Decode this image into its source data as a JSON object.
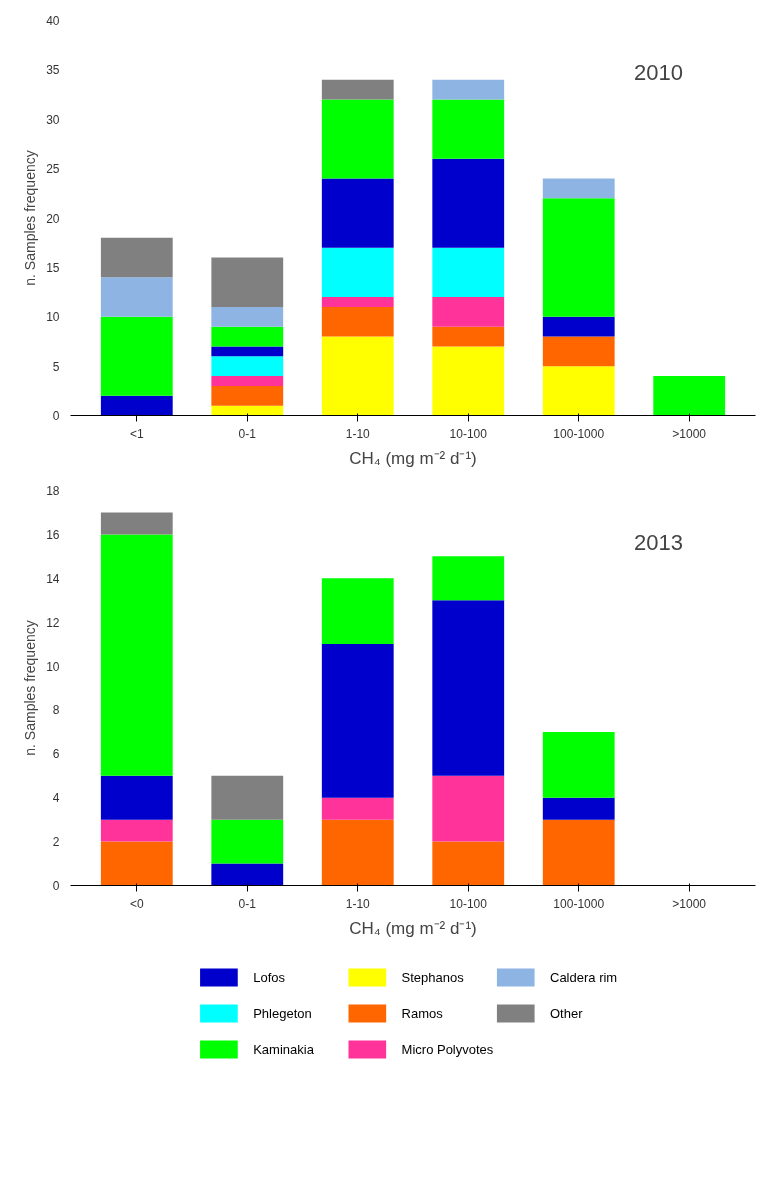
{
  "chart_data": [
    {
      "type": "bar",
      "stacked": true,
      "annotations": [
        "2010"
      ],
      "xlabel": "CH₄ (mg m⁻² d⁻¹)",
      "ylabel": "n. Samples frequency",
      "categories": [
        "<1",
        "0-1",
        "1-10",
        "10-100",
        "100-1000",
        ">1000"
      ],
      "ylim": [
        0,
        40
      ],
      "yticks": [
        0,
        5,
        10,
        15,
        20,
        25,
        30,
        35,
        40
      ],
      "grid": false,
      "legend": "bottom",
      "series": [
        {
          "name": "Stephanos",
          "color": "#ffff00",
          "values": [
            0,
            1,
            8,
            7,
            5,
            0
          ]
        },
        {
          "name": "Ramos",
          "color": "#ff6600",
          "values": [
            0,
            2,
            3,
            2,
            3,
            0
          ]
        },
        {
          "name": "Micro Polyvotes",
          "color": "#ff3399",
          "values": [
            0,
            1,
            1,
            3,
            0,
            0
          ]
        },
        {
          "name": "Phlegeton",
          "color": "#00ffff",
          "values": [
            0,
            2,
            5,
            5,
            0,
            0
          ]
        },
        {
          "name": "Lofos",
          "color": "#0000cc",
          "values": [
            2,
            1,
            7,
            9,
            2,
            0
          ]
        },
        {
          "name": "Kaminakia",
          "color": "#00ff00",
          "values": [
            8,
            2,
            8,
            6,
            12,
            4
          ]
        },
        {
          "name": "Caldera rim",
          "color": "#8eb4e3",
          "values": [
            4,
            2,
            0,
            2,
            2,
            0
          ]
        },
        {
          "name": "Other",
          "color": "#808080",
          "values": [
            4,
            5,
            2,
            0,
            0,
            0
          ]
        }
      ]
    },
    {
      "type": "bar",
      "stacked": true,
      "annotations": [
        "2013"
      ],
      "xlabel": "CH₄ (mg m⁻² d⁻¹)",
      "ylabel": "n. Samples frequency",
      "categories": [
        "<0",
        "0-1",
        "1-10",
        "10-100",
        "100-1000",
        ">1000"
      ],
      "ylim": [
        0,
        18
      ],
      "yticks": [
        0,
        2,
        4,
        6,
        8,
        10,
        12,
        14,
        16,
        18
      ],
      "grid": false,
      "series": [
        {
          "color": "#ff6600",
          "values": [
            2,
            0,
            3,
            2,
            3,
            0
          ]
        },
        {
          "color": "#ff3399",
          "values": [
            1,
            0,
            1,
            3,
            0,
            0
          ]
        },
        {
          "color": "#0000cc",
          "values": [
            2,
            1,
            7,
            8,
            1,
            0
          ]
        },
        {
          "color": "#00ff00",
          "values": [
            11,
            2,
            3,
            2,
            3,
            0
          ]
        },
        {
          "color": "#808080",
          "values": [
            1,
            2,
            0,
            0,
            0,
            0
          ]
        }
      ]
    }
  ]
}
